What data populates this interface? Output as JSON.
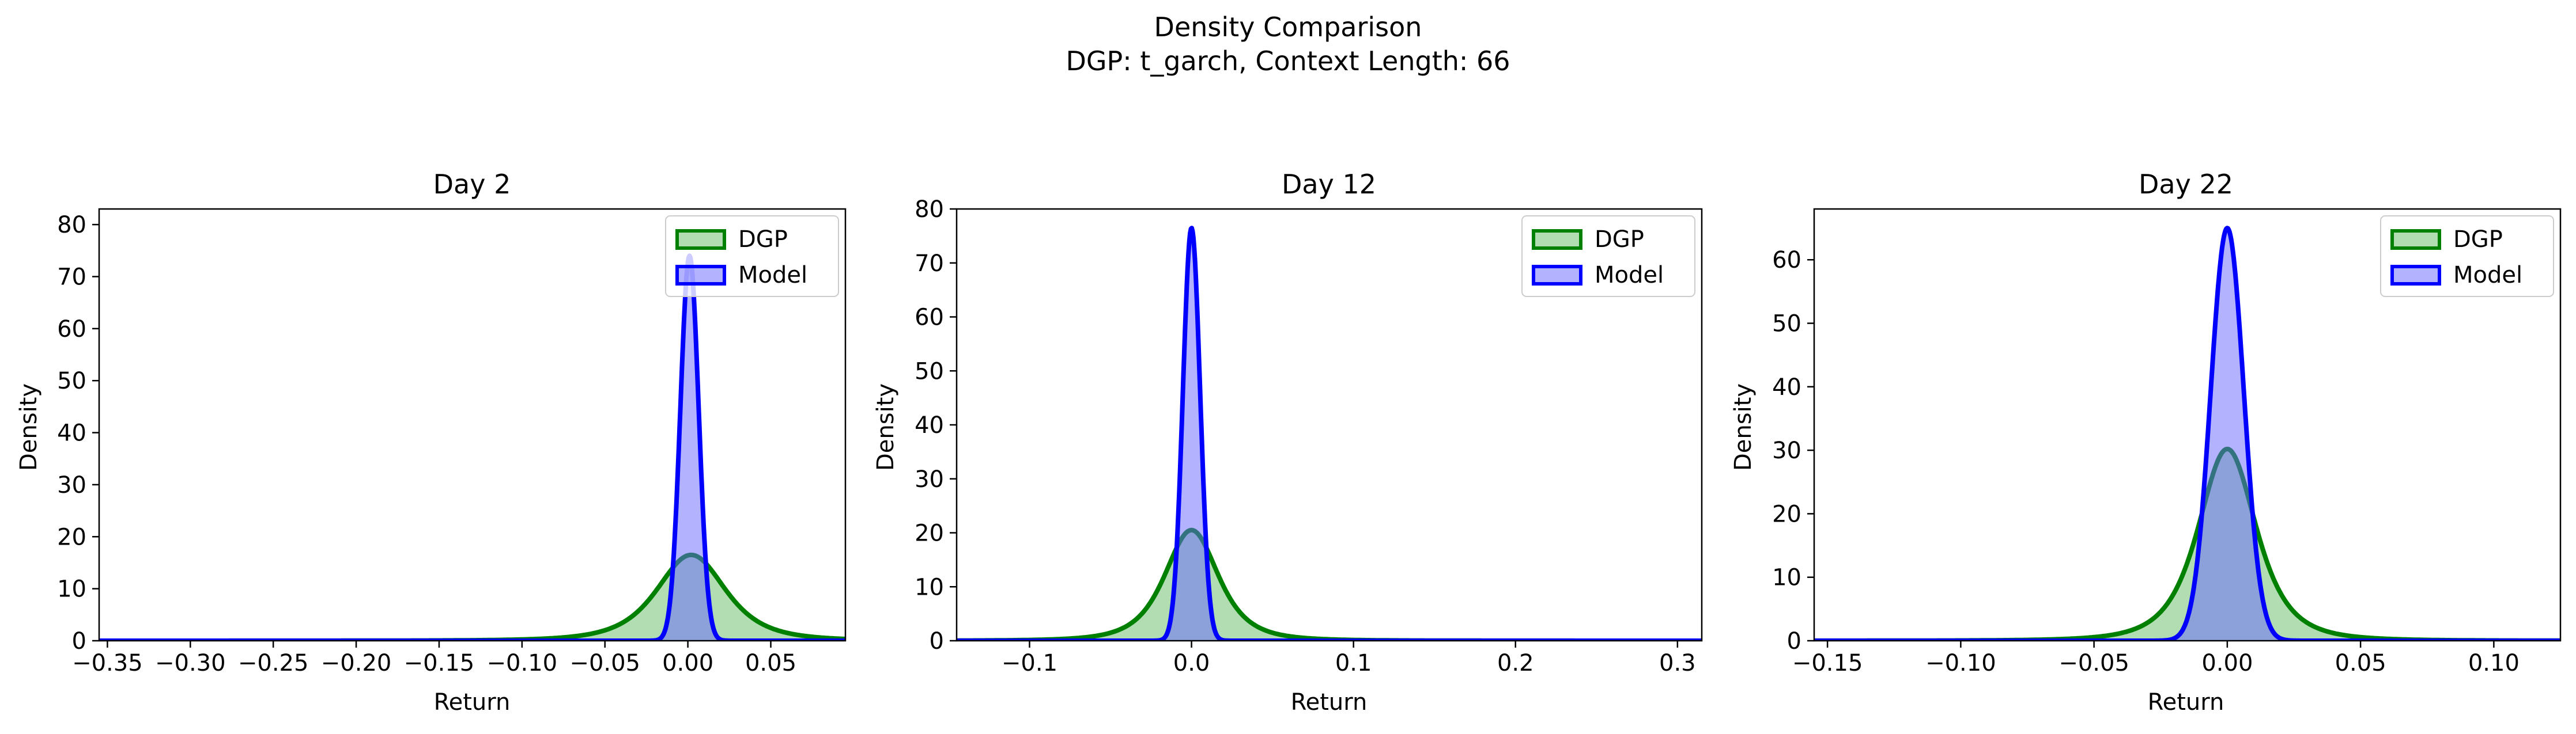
{
  "figure": {
    "title_line1": "Density Comparison",
    "title_line2": "DGP: t_garch, Context Length: 66"
  },
  "colors": {
    "dgp_line": "#008000",
    "dgp_fill": "#66bb66",
    "model_line": "#0000ff",
    "model_fill": "#6666ff",
    "axis": "#000000",
    "background": "#ffffff"
  },
  "chart_data": [
    {
      "type": "area",
      "title": "Day 2",
      "xlabel": "Return",
      "ylabel": "Density",
      "xlim": [
        -0.355,
        0.095
      ],
      "ylim": [
        0,
        83
      ],
      "xticks": [
        -0.35,
        -0.3,
        -0.25,
        -0.2,
        -0.15,
        -0.1,
        -0.05,
        0.0,
        0.05
      ],
      "xtick_labels": [
        "−0.35",
        "−0.30",
        "−0.25",
        "−0.20",
        "−0.15",
        "−0.10",
        "−0.05",
        "0.00",
        "0.05"
      ],
      "yticks": [
        0,
        10,
        20,
        30,
        40,
        50,
        60,
        70,
        80
      ],
      "ytick_labels": [
        "0",
        "10",
        "20",
        "30",
        "40",
        "50",
        "60",
        "70",
        "80"
      ],
      "legend": {
        "placement": "top-right",
        "entries": [
          "DGP",
          "Model"
        ]
      },
      "series": [
        {
          "name": "DGP",
          "shape": "student-t",
          "center": 0.002,
          "peak": 16.5,
          "scale": 0.022,
          "dof": 3
        },
        {
          "name": "Model",
          "shape": "gaussian",
          "center": 0.001,
          "peak": 74,
          "scale": 0.0055
        }
      ]
    },
    {
      "type": "area",
      "title": "Day 12",
      "xlabel": "Return",
      "ylabel": "Density",
      "xlim": [
        -0.145,
        0.315
      ],
      "ylim": [
        0,
        80
      ],
      "xticks": [
        -0.1,
        0.0,
        0.1,
        0.2,
        0.3
      ],
      "xtick_labels": [
        "−0.1",
        "0.0",
        "0.1",
        "0.2",
        "0.3"
      ],
      "yticks": [
        0,
        10,
        20,
        30,
        40,
        50,
        60,
        70,
        80
      ],
      "ytick_labels": [
        "0",
        "10",
        "20",
        "30",
        "40",
        "50",
        "60",
        "70",
        "80"
      ],
      "legend": {
        "placement": "top-right",
        "entries": [
          "DGP",
          "Model"
        ]
      },
      "series": [
        {
          "name": "DGP",
          "shape": "student-t",
          "center": 0.0,
          "peak": 20.5,
          "scale": 0.0175,
          "dof": 3
        },
        {
          "name": "Model",
          "shape": "gaussian",
          "center": 0.0,
          "peak": 76.5,
          "scale": 0.0053
        }
      ]
    },
    {
      "type": "area",
      "title": "Day 22",
      "xlabel": "Return",
      "ylabel": "Density",
      "xlim": [
        -0.155,
        0.125
      ],
      "ylim": [
        0,
        68
      ],
      "xticks": [
        -0.15,
        -0.1,
        -0.05,
        0.0,
        0.05,
        0.1
      ],
      "xtick_labels": [
        "−0.15",
        "−0.10",
        "−0.05",
        "0.00",
        "0.05",
        "0.10"
      ],
      "yticks": [
        0,
        10,
        20,
        30,
        40,
        50,
        60
      ],
      "ytick_labels": [
        "0",
        "10",
        "20",
        "30",
        "40",
        "50",
        "60"
      ],
      "legend": {
        "placement": "top-right",
        "entries": [
          "DGP",
          "Model"
        ]
      },
      "series": [
        {
          "name": "DGP",
          "shape": "student-t",
          "center": 0.0,
          "peak": 30.2,
          "scale": 0.0115,
          "dof": 3
        },
        {
          "name": "Model",
          "shape": "gaussian",
          "center": 0.0,
          "peak": 65,
          "scale": 0.0062
        }
      ]
    }
  ]
}
